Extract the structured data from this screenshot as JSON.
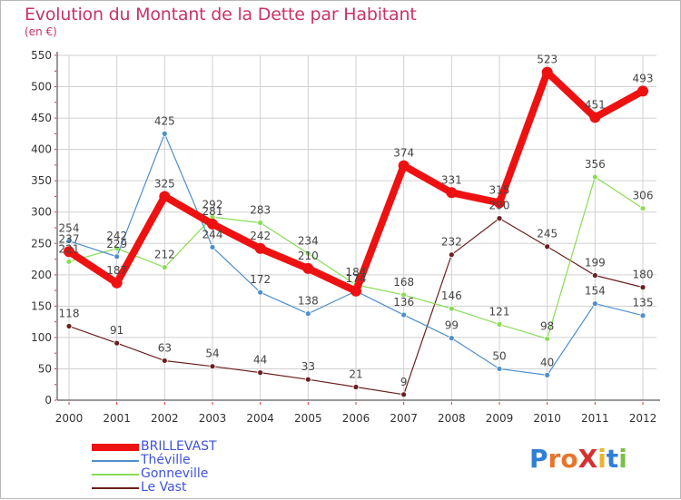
{
  "title": "Evolution du Montant de la Dette par Habitant",
  "unit_label": "(en €)",
  "logo_text": "ProXiti",
  "chart_data": {
    "type": "line",
    "title": "Evolution du Montant de la Dette par Habitant",
    "subtitle": "(en €)",
    "x": [
      "2000",
      "2001",
      "2002",
      "2003",
      "2004",
      "2005",
      "2006",
      "2007",
      "2008",
      "2009",
      "2010",
      "2011",
      "2012"
    ],
    "ylim": [
      0,
      550
    ],
    "yticks": [
      0,
      50,
      100,
      150,
      200,
      250,
      300,
      350,
      400,
      450,
      500,
      550
    ],
    "grid": true,
    "legend_position": "bottom-left",
    "series": [
      {
        "name": "BRILLEVAST",
        "color": "#ee1111",
        "values": [
          237,
          187,
          325,
          281,
          242,
          210,
          174,
          374,
          331,
          315,
          523,
          451,
          493
        ]
      },
      {
        "name": "Théville",
        "color": "#4f8fcc",
        "values": [
          254,
          229,
          425,
          244,
          172,
          138,
          174,
          136,
          99,
          50,
          40,
          154,
          135
        ]
      },
      {
        "name": "Gonneville",
        "color": "#88dd55",
        "values": [
          221,
          242,
          212,
          292,
          283,
          234,
          184,
          168,
          146,
          121,
          98,
          356,
          306
        ]
      },
      {
        "name": "Le Vast",
        "color": "#6b1f1f",
        "values": [
          118,
          91,
          63,
          54,
          44,
          33,
          21,
          9,
          232,
          290,
          245,
          199,
          180
        ]
      }
    ],
    "data_labels": {
      "BRILLEVAST": [
        "237",
        "187",
        "325",
        "281",
        "242",
        "210",
        "174",
        "374",
        "331",
        "315",
        "523",
        "451",
        "493"
      ],
      "Théville": [
        "254",
        "229",
        "425",
        "244",
        "172",
        "138",
        "174",
        "136",
        "99",
        "50",
        "40",
        "154",
        "135"
      ],
      "Gonneville": [
        "221",
        "242",
        "212",
        "292",
        "283",
        "234",
        "184",
        "168",
        "146",
        "121",
        "98",
        "356",
        "306"
      ],
      "Le Vast": [
        "118",
        "91",
        "63",
        "54",
        "44",
        "33",
        "21",
        "9",
        "232",
        "290",
        "245",
        "199",
        "180"
      ]
    }
  },
  "colors": {
    "title": "#c8336a",
    "grid": "#d0d0d0",
    "axis": "#333333",
    "tick_label": "#333333",
    "legend_text": "#3f52e0"
  }
}
